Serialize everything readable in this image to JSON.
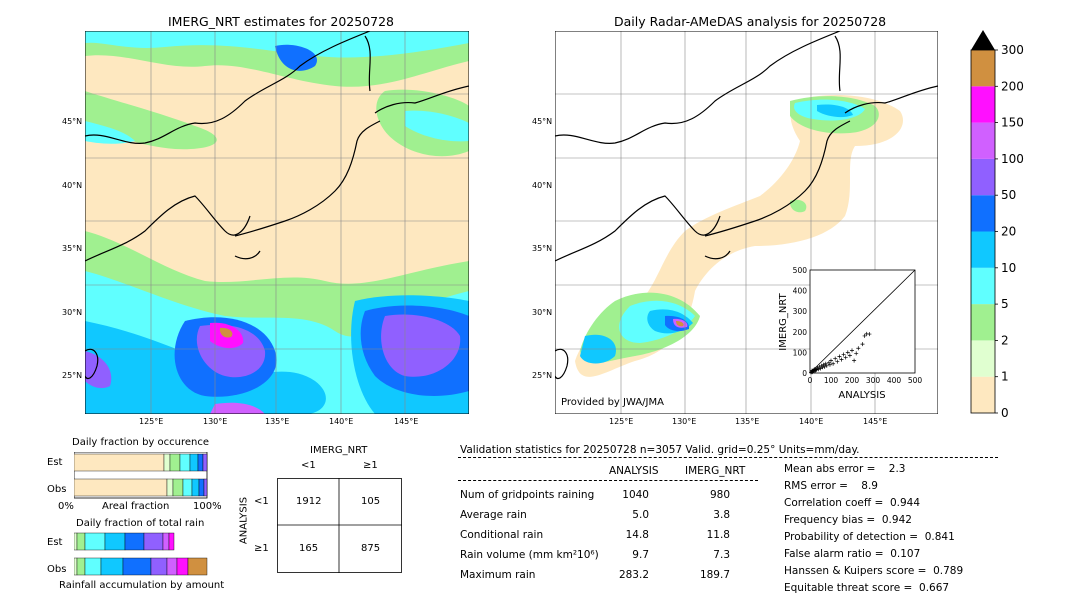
{
  "maps": {
    "left_title": "IMERG_NRT estimates for 20250728",
    "right_title": "Daily Radar-AMeDAS analysis for 20250728",
    "lon_ticks": [
      "125°E",
      "130°E",
      "135°E",
      "140°E",
      "145°E"
    ],
    "lat_ticks": [
      "45°N",
      "40°N",
      "35°N",
      "30°N",
      "25°N"
    ],
    "credit": "Provided by JWA/JMA"
  },
  "colorbar": {
    "levels": [
      "0",
      "1",
      "2",
      "5",
      "10",
      "20",
      "50",
      "100",
      "150",
      "200",
      "300"
    ],
    "colors": [
      "#fee8c0",
      "#e0ffd0",
      "#a0f090",
      "#60ffff",
      "#10c8ff",
      "#1070ff",
      "#9060ff",
      "#d060ff",
      "#ff10ff",
      "#d09040"
    ]
  },
  "fraction_occurrence": {
    "title": "Daily fraction by occurence",
    "rows": [
      "Est",
      "Obs"
    ],
    "axis_left": "0%",
    "axis_mid": "Areal fraction",
    "axis_right": "100%"
  },
  "fraction_total": {
    "title": "Daily fraction of total rain",
    "rows": [
      "Est",
      "Obs"
    ],
    "axis_label": "Rainfall accumulation by amount"
  },
  "contingency": {
    "col_title": "IMERG_NRT",
    "col_labels": [
      "<1",
      "≥1"
    ],
    "row_title": "ANALYSIS",
    "row_labels": [
      "<1",
      "≥1"
    ],
    "cells": [
      [
        "1912",
        "105"
      ],
      [
        "165",
        "875"
      ]
    ]
  },
  "validation": {
    "header": "Validation statistics for 20250728  n=3057 Valid. grid=0.25° Units=mm/day.",
    "col_analysis": "ANALYSIS",
    "col_imerg": "IMERG_NRT",
    "rows": [
      {
        "label": "Num of gridpoints raining",
        "analysis": "1040",
        "imerg": "980"
      },
      {
        "label": "Average rain",
        "analysis": "5.0",
        "imerg": "3.8"
      },
      {
        "label": "Conditional rain",
        "analysis": "14.8",
        "imerg": "11.8"
      },
      {
        "label": "Rain volume (mm km²10⁶)",
        "analysis": "9.7",
        "imerg": "7.3"
      },
      {
        "label": "Maximum rain",
        "analysis": "283.2",
        "imerg": "189.7"
      }
    ],
    "scores": [
      "Mean abs error =    2.3",
      "RMS error =    8.9",
      "Correlation coeff =  0.944",
      "Frequency bias =  0.942",
      "Probability of detection =  0.841",
      "False alarm ratio =  0.107",
      "Hanssen & Kuipers score =  0.789",
      "Equitable threat score =  0.667"
    ]
  },
  "chart_data": {
    "type": "scatter",
    "xlabel": "ANALYSIS",
    "ylabel": "IMERG_NRT",
    "xlim": [
      0,
      500
    ],
    "ylim": [
      0,
      500
    ],
    "ticks": [
      "0",
      "100",
      "200",
      "300",
      "400",
      "500"
    ],
    "points": [
      [
        5,
        3
      ],
      [
        8,
        6
      ],
      [
        10,
        12
      ],
      [
        12,
        4
      ],
      [
        15,
        10
      ],
      [
        18,
        15
      ],
      [
        20,
        8
      ],
      [
        22,
        18
      ],
      [
        25,
        12
      ],
      [
        28,
        20
      ],
      [
        30,
        15
      ],
      [
        35,
        25
      ],
      [
        40,
        18
      ],
      [
        45,
        30
      ],
      [
        50,
        22
      ],
      [
        55,
        35
      ],
      [
        60,
        28
      ],
      [
        65,
        40
      ],
      [
        70,
        30
      ],
      [
        75,
        45
      ],
      [
        80,
        35
      ],
      [
        90,
        50
      ],
      [
        95,
        40
      ],
      [
        100,
        60
      ],
      [
        110,
        45
      ],
      [
        120,
        70
      ],
      [
        130,
        55
      ],
      [
        140,
        80
      ],
      [
        150,
        65
      ],
      [
        160,
        90
      ],
      [
        170,
        75
      ],
      [
        180,
        100
      ],
      [
        190,
        85
      ],
      [
        200,
        110
      ],
      [
        210,
        60
      ],
      [
        220,
        95
      ],
      [
        230,
        120
      ],
      [
        250,
        140
      ],
      [
        260,
        180
      ],
      [
        270,
        190
      ],
      [
        283,
        189
      ]
    ]
  }
}
